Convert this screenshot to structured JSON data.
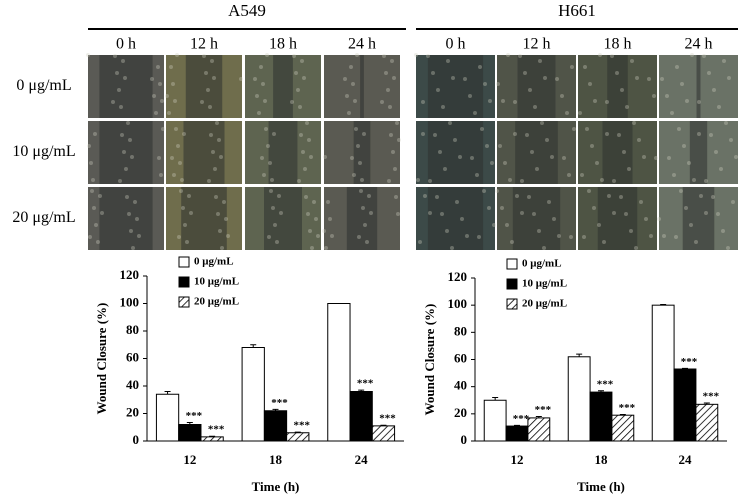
{
  "figure": {
    "cell_lines": [
      "A549",
      "H661"
    ],
    "time_labels": [
      "0 h",
      "12 h",
      "18 h",
      "24 h"
    ],
    "dose_labels": [
      "0 μg/mL",
      "10 μg/mL",
      "20 μg/mL"
    ]
  },
  "chart_data": [
    {
      "type": "bar",
      "ylabel": "Wound Closure (%)",
      "xlabel": "Time (h)",
      "categories": [
        "12",
        "18",
        "24"
      ],
      "ylim": [
        0,
        120
      ],
      "yticks": [
        0,
        20,
        40,
        60,
        80,
        100,
        120
      ],
      "legend": "top-left",
      "series": [
        {
          "name": "0 μg/mL",
          "color": "#ffffff",
          "values": [
            34,
            68,
            100
          ],
          "errors": [
            2,
            2,
            0
          ]
        },
        {
          "name": "10 μg/mL",
          "color": "#000000",
          "values": [
            12,
            22,
            36
          ],
          "errors": [
            1.5,
            1,
            1
          ],
          "significance": [
            "***",
            "***",
            "***"
          ]
        },
        {
          "name": "20 μg/mL",
          "color": "#ffffff",
          "hatch": true,
          "values": [
            3,
            6,
            11
          ],
          "errors": [
            0.5,
            0.5,
            0.5
          ],
          "significance": [
            "***",
            "***",
            "***"
          ]
        }
      ]
    },
    {
      "type": "bar",
      "ylabel": "Wound Closure (%)",
      "xlabel": "Time (h)",
      "categories": [
        "12",
        "18",
        "24"
      ],
      "ylim": [
        0,
        120
      ],
      "yticks": [
        0,
        20,
        40,
        60,
        80,
        100,
        120
      ],
      "legend": "top-left",
      "series": [
        {
          "name": "0 μg/mL",
          "color": "#ffffff",
          "values": [
            30,
            62,
            100
          ],
          "errors": [
            2,
            2,
            0.5
          ]
        },
        {
          "name": "10 μg/mL",
          "color": "#000000",
          "values": [
            11,
            36,
            53
          ],
          "errors": [
            0.5,
            1,
            0.5
          ],
          "significance": [
            "***",
            "***",
            "***"
          ]
        },
        {
          "name": "20 μg/mL",
          "color": "#ffffff",
          "hatch": true,
          "values": [
            17,
            19,
            27
          ],
          "errors": [
            1,
            0.5,
            1
          ],
          "significance": [
            "***",
            "***",
            "***"
          ]
        }
      ]
    }
  ]
}
